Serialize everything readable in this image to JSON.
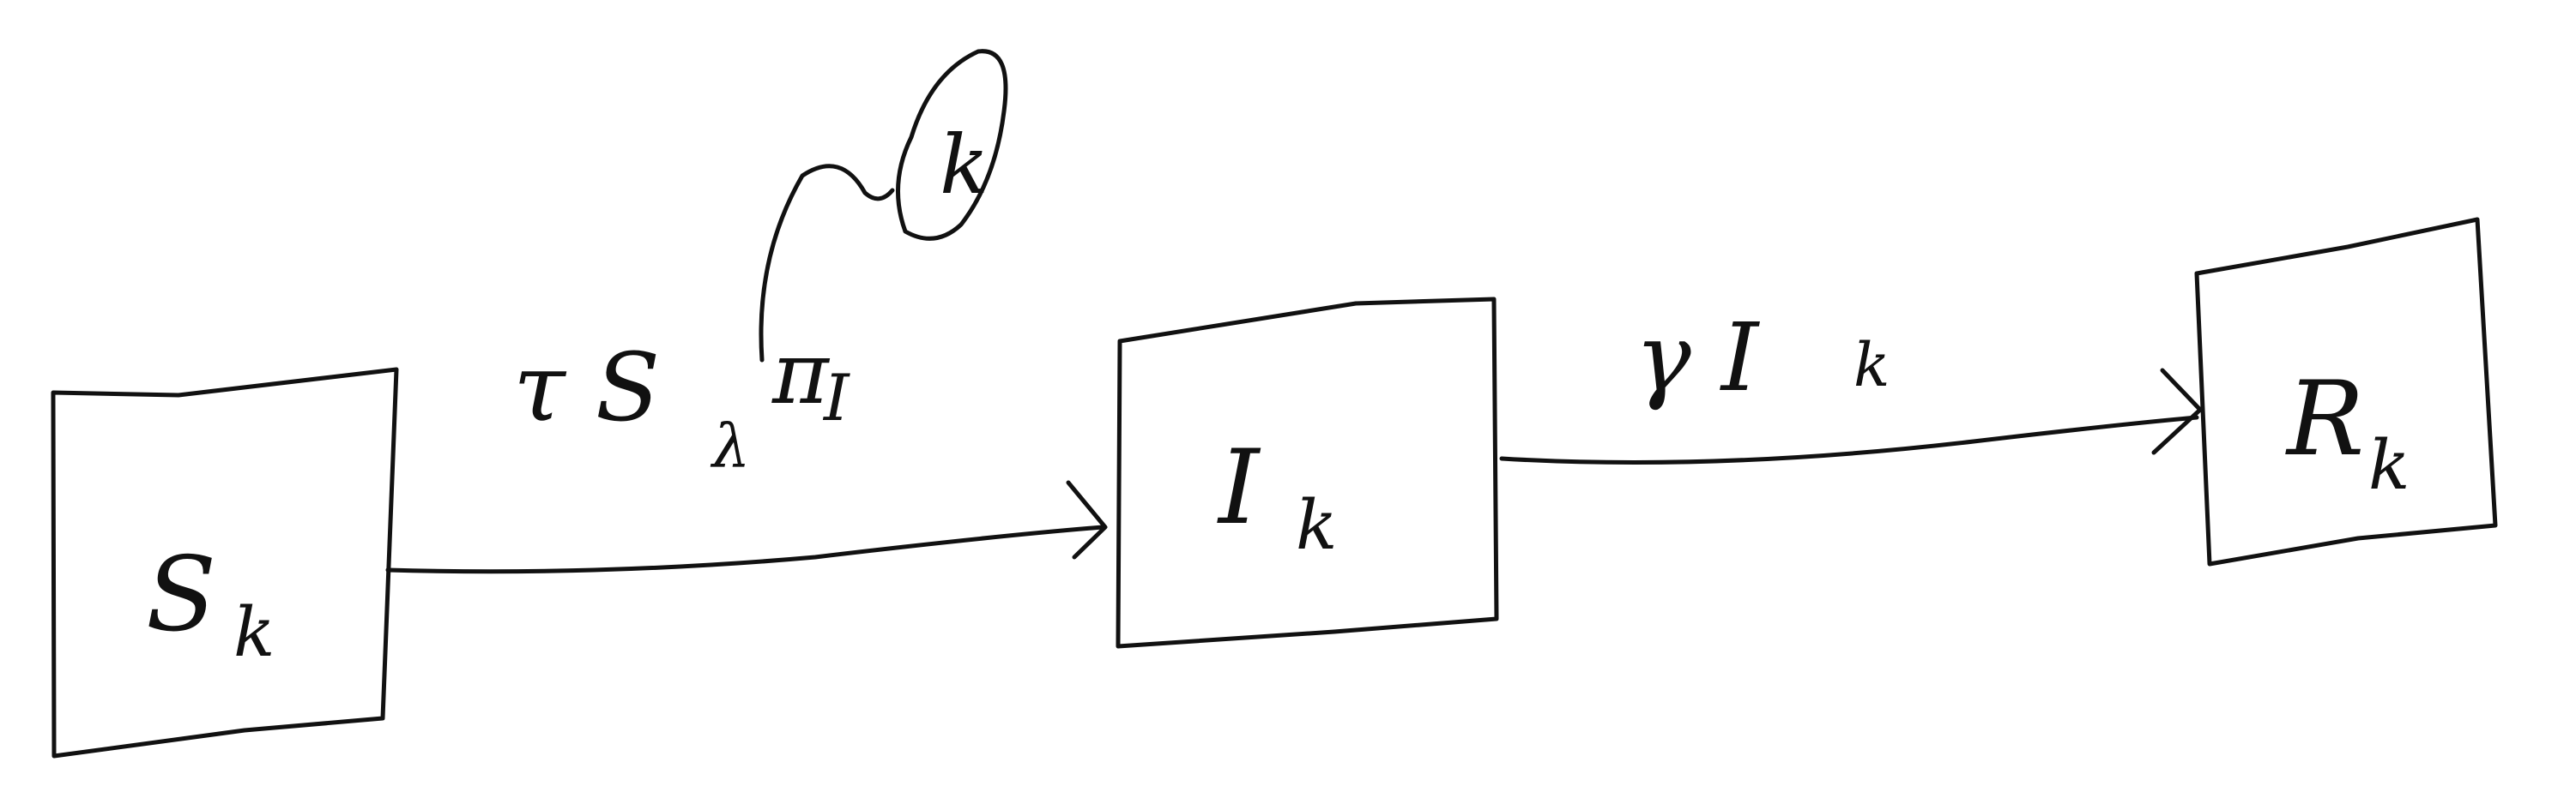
{
  "boxes": {
    "s": {
      "main": "S",
      "sub": "k"
    },
    "i": {
      "main": "I",
      "sub": "k"
    },
    "r": {
      "main": "R",
      "sub": "k"
    }
  },
  "edges": {
    "infection": {
      "prefix": "τ S",
      "sub": "λ",
      "mid": "π",
      "mid_sub": "I",
      "note": "k"
    },
    "recovery": {
      "prefix": "γ I",
      "sub": "k"
    }
  }
}
